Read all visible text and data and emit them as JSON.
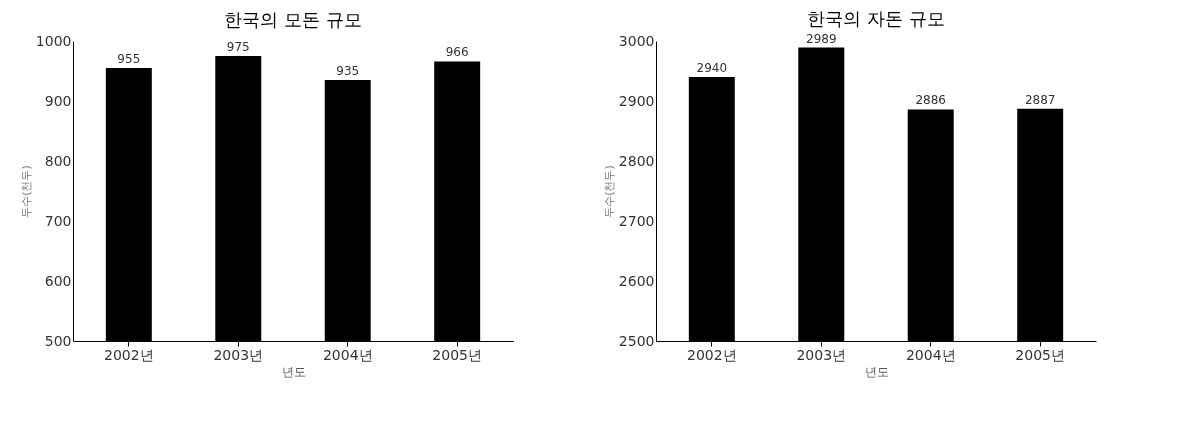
{
  "chart_data": [
    {
      "type": "bar",
      "title": "한국의 모돈 규모",
      "xlabel": "년도",
      "ylabel": "두수(천두)",
      "categories": [
        "2002년",
        "2003년",
        "2004년",
        "2005년"
      ],
      "values": [
        955,
        975,
        935,
        966
      ],
      "color": "#000000",
      "ylim": [
        500,
        1000
      ],
      "yticks": [
        500,
        600,
        700,
        800,
        900,
        1000
      ],
      "grid": false,
      "data_labels": true
    },
    {
      "type": "bar",
      "title": "한국의 자돈 규모",
      "xlabel": "년도",
      "ylabel": "두수(천두)",
      "categories": [
        "2002년",
        "2003년",
        "2004년",
        "2005년"
      ],
      "values": [
        2940,
        2989,
        2886,
        2887
      ],
      "color": "#000000",
      "ylim": [
        2500,
        3000
      ],
      "yticks": [
        2500,
        2600,
        2700,
        2800,
        2900,
        3000
      ],
      "grid": false,
      "data_labels": true
    }
  ]
}
